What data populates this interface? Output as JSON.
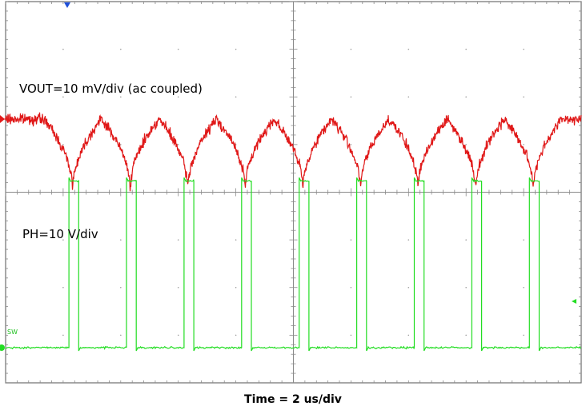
{
  "chart_data": {
    "type": "line",
    "title": "",
    "xlabel": "Time = 2 us/div",
    "ylabel": "",
    "grid": true,
    "x_divisions": 10,
    "y_divisions": 8,
    "period_us": 2.0,
    "xlim_us": [
      0,
      20
    ],
    "series": [
      {
        "name": "VOUT=10 mV/div (ac coupled)",
        "color": "#e01818",
        "coupling": "ac",
        "volts_per_div": 0.01,
        "peak_mV": 0,
        "trough_mV": -15,
        "trough_times_us": [
          2.33,
          4.33,
          6.33,
          8.33,
          10.33,
          12.33,
          14.33,
          16.33,
          18.33
        ]
      },
      {
        "name": "PH=10 V/div",
        "color": "#22dd22",
        "volts_per_div": 10,
        "low_V": 0,
        "high_V": 35,
        "pulse_width_us": 0.34,
        "rise_times_us": [
          2.2,
          4.2,
          6.2,
          8.2,
          10.2,
          12.2,
          14.2,
          16.2,
          18.2
        ]
      }
    ]
  },
  "markers": {
    "ground_tag": "SW",
    "trigger_color": "#1e4fd8"
  }
}
